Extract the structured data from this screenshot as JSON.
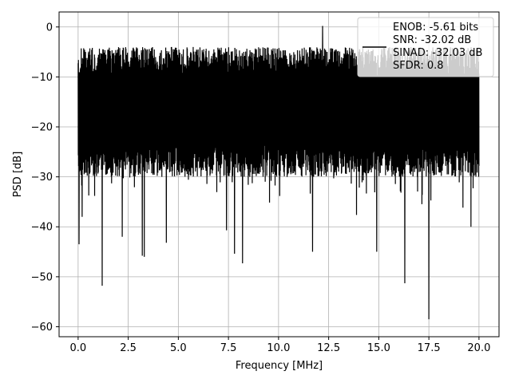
{
  "chart_data": {
    "type": "line",
    "title": "",
    "xlabel": "Frequency [MHz]",
    "ylabel": "PSD [dB]",
    "xlim": [
      -0.95,
      21.0
    ],
    "ylim": [
      -62,
      3
    ],
    "x_ticks": [
      0.0,
      2.5,
      5.0,
      7.5,
      10.0,
      12.5,
      15.0,
      17.5,
      20.0
    ],
    "x_tick_labels": [
      "0.0",
      "2.5",
      "5.0",
      "7.5",
      "10.0",
      "12.5",
      "15.0",
      "17.5",
      "20.0"
    ],
    "y_ticks": [
      0,
      -10,
      -20,
      -30,
      -40,
      -50,
      -60
    ],
    "y_tick_labels": [
      "0",
      "−10",
      "−20",
      "−30",
      "−40",
      "−50",
      "−60"
    ],
    "grid": true,
    "legend_position": "top-right",
    "series": [
      {
        "name": "ENOB: -5.61 bits\nSNR: -32.02 dB\nSINAD: -32.03 dB\nSFDR: 0.8",
        "color": "#000000",
        "x_range": [
          0.0,
          20.0
        ],
        "y_range": [
          -58.5,
          0.2
        ],
        "typical_envelope": [
          -29,
          -4
        ],
        "notable_points": [
          {
            "x": 0.05,
            "y": -43.5
          },
          {
            "x": 0.2,
            "y": -38.0
          },
          {
            "x": 1.2,
            "y": -51.8
          },
          {
            "x": 2.2,
            "y": -42.0
          },
          {
            "x": 3.2,
            "y": -45.8
          },
          {
            "x": 3.3,
            "y": -46.0
          },
          {
            "x": 4.4,
            "y": -43.2
          },
          {
            "x": 7.4,
            "y": -40.7
          },
          {
            "x": 7.8,
            "y": -45.4
          },
          {
            "x": 8.2,
            "y": -47.3
          },
          {
            "x": 11.7,
            "y": -45.0
          },
          {
            "x": 12.2,
            "y": 0.2
          },
          {
            "x": 14.9,
            "y": -45.0
          },
          {
            "x": 16.3,
            "y": -51.3
          },
          {
            "x": 17.5,
            "y": -58.5
          },
          {
            "x": 19.6,
            "y": -40.0
          }
        ]
      }
    ]
  }
}
